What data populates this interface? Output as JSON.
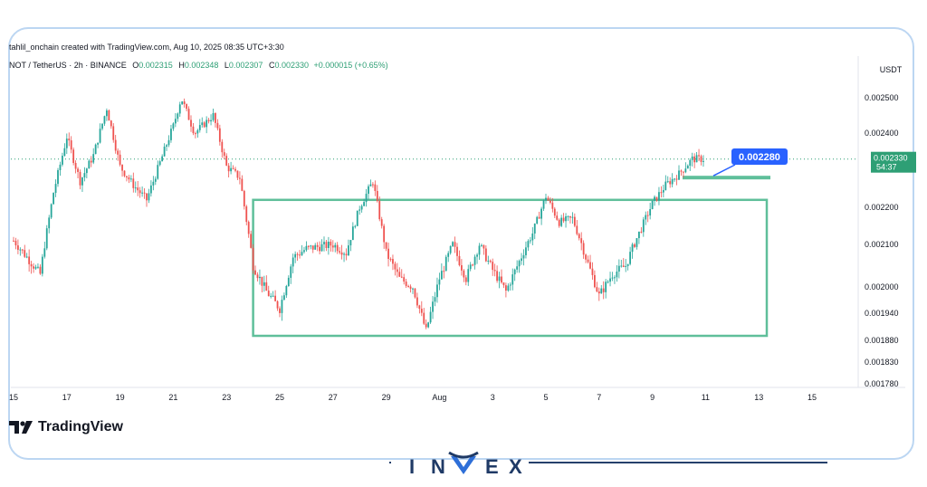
{
  "header": {
    "attribution": "tahlil_onchain created with TradingView.com, Aug 10, 2025 08:35 UTC+3:30"
  },
  "symbol_bar": {
    "symbol": "NOT / TetherUS · 2h · BINANCE",
    "open_label": "O",
    "open": "0.002315",
    "high_label": "H",
    "high": "0.002348",
    "low_label": "L",
    "low": "0.002307",
    "close_label": "C",
    "close": "0.002330",
    "change": "+0.000015 (+0.65%)"
  },
  "axis": {
    "currency": "USDT"
  },
  "last_price": {
    "value": "0.002330",
    "countdown": "54:37"
  },
  "callout": {
    "label": "0.002280"
  },
  "branding": {
    "platform": "TradingView",
    "brand": "INVEX"
  },
  "colors": {
    "up": "#26a69a",
    "down": "#ef5350",
    "box": "#5fbf9a",
    "callout": "#2962ff",
    "last_price": "#2e9f75"
  },
  "chart_data": {
    "type": "candlestick",
    "title": "",
    "xlabel": "",
    "ylabel": "",
    "x_ticks": [
      "15",
      "17",
      "19",
      "21",
      "23",
      "25",
      "27",
      "29",
      "Aug",
      "3",
      "5",
      "7",
      "9",
      "11",
      "13",
      "15"
    ],
    "y_ticks": [
      "0.002500",
      "0.002400",
      "0.002200",
      "0.002100",
      "0.002000",
      "0.001940",
      "0.001880",
      "0.001830",
      "0.001780"
    ],
    "price_path": [
      [
        "Jul 15",
        0.00211
      ],
      [
        "Jul 16",
        0.00203
      ],
      [
        "Jul 16.5",
        0.00224
      ],
      [
        "Jul 17",
        0.00239
      ],
      [
        "Jul 17.5",
        0.00227
      ],
      [
        "Jul 18",
        0.00234
      ],
      [
        "Jul 18.5",
        0.00247
      ],
      [
        "Jul 19",
        0.00231
      ],
      [
        "Jul 19.5",
        0.00226
      ],
      [
        "Jul 20",
        0.00222
      ],
      [
        "Jul 20.5",
        0.00232
      ],
      [
        "Jul 21",
        0.00242
      ],
      [
        "Jul 21.3",
        0.0025
      ],
      [
        "Jul 21.8",
        0.0024
      ],
      [
        "Jul 22.5",
        0.00245
      ],
      [
        "Jul 23",
        0.00231
      ],
      [
        "Jul 23.5",
        0.00228
      ],
      [
        "Jul 24",
        0.00205
      ],
      [
        "Jul 24.5",
        0.00199
      ],
      [
        "Jul 25",
        0.00195
      ],
      [
        "Jul 25.5",
        0.00207
      ],
      [
        "Jul 26",
        0.00209
      ],
      [
        "Jul 27",
        0.0021
      ],
      [
        "Jul 27.5",
        0.00208
      ],
      [
        "Jul 28",
        0.0022
      ],
      [
        "Jul 28.5",
        0.00227
      ],
      [
        "Jul 29",
        0.00208
      ],
      [
        "Jul 29.5",
        0.00202
      ],
      [
        "Jul 30",
        0.002
      ],
      [
        "Jul 30.5",
        0.0019
      ],
      [
        "Jul 31",
        0.00202
      ],
      [
        "Jul 31.5",
        0.0021
      ],
      [
        "Aug 1",
        0.00202
      ],
      [
        "Aug 1.5",
        0.0021
      ],
      [
        "Aug 2",
        0.00204
      ],
      [
        "Aug 2.5",
        0.00199
      ],
      [
        "Aug 3",
        0.00206
      ],
      [
        "Aug 3.5",
        0.00213
      ],
      [
        "Aug 4",
        0.00223
      ],
      [
        "Aug 4.5",
        0.00216
      ],
      [
        "Aug 5",
        0.00217
      ],
      [
        "Aug 5.5",
        0.00207
      ],
      [
        "Aug 6",
        0.00198
      ],
      [
        "Aug 6.5",
        0.00203
      ],
      [
        "Aug 7",
        0.00205
      ],
      [
        "Aug 7.5",
        0.00213
      ],
      [
        "Aug 8",
        0.00221
      ],
      [
        "Aug 8.5",
        0.00226
      ],
      [
        "Aug 9",
        0.00229
      ],
      [
        "Aug 9.5",
        0.00233
      ],
      [
        "Aug 10",
        0.00233
      ]
    ],
    "range_box": {
      "x_start": "Jul 24",
      "x_end": "Aug 12.3",
      "top": 0.00222,
      "bottom": 0.00189
    },
    "marked_level": {
      "price": 0.00228,
      "x_start": "Aug 9",
      "x_end": "Aug 12.3"
    }
  }
}
